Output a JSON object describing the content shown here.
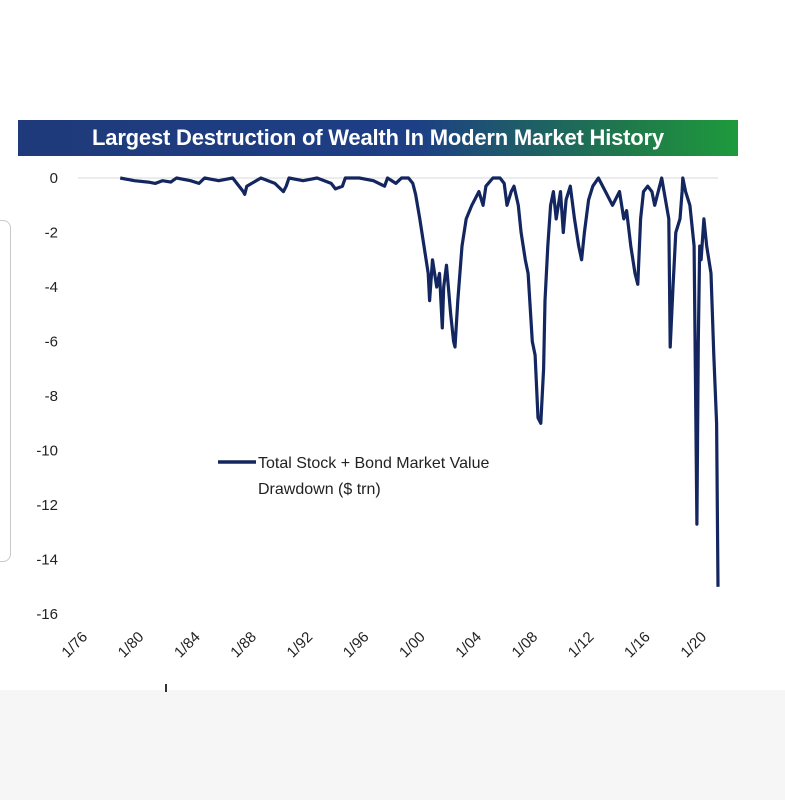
{
  "chart_data": {
    "type": "line",
    "title": "Largest Destruction of Wealth In Modern Market History",
    "xlabel": "",
    "ylabel": "",
    "ylim": [
      -16,
      0
    ],
    "yticks": [
      "0",
      "-2",
      "-4",
      "-6",
      "-8",
      "-10",
      "-12",
      "-14",
      "-16"
    ],
    "xticks": [
      "1/76",
      "1/80",
      "1/84",
      "1/88",
      "1/92",
      "1/96",
      "1/00",
      "1/04",
      "1/08",
      "1/12",
      "1/16",
      "1/20"
    ],
    "xlim": [
      1976,
      2021.5
    ],
    "grid": false,
    "legend_position": "center-left",
    "series": [
      {
        "name": "Total Stock + Bond Market Value Drawdown ($ trn)",
        "legend_line1": "Total Stock + Bond Market Value",
        "legend_line2": "Drawdown ($ trn)",
        "color": "#13265f",
        "x": [
          1979.0,
          1980.0,
          1981.0,
          1981.5,
          1982.0,
          1982.6,
          1983.0,
          1984.0,
          1984.6,
          1985.0,
          1986.0,
          1987.0,
          1987.75,
          1987.85,
          1988.0,
          1989.0,
          1990.0,
          1990.6,
          1990.8,
          1991.0,
          1992.0,
          1993.0,
          1994.0,
          1994.3,
          1994.8,
          1995.0,
          1996.0,
          1997.0,
          1997.8,
          1998.0,
          1998.6,
          1998.8,
          1999.0,
          1999.5,
          1999.8,
          2000.0,
          2000.3,
          2000.6,
          2000.9,
          2001.0,
          2001.2,
          2001.5,
          2001.7,
          2001.9,
          2002.0,
          2002.2,
          2002.5,
          2002.7,
          2002.8,
          2003.0,
          2003.3,
          2003.6,
          2004.0,
          2004.5,
          2004.8,
          2005.0,
          2005.5,
          2006.0,
          2006.3,
          2006.5,
          2006.8,
          2007.0,
          2007.3,
          2007.5,
          2007.8,
          2008.0,
          2008.3,
          2008.5,
          2008.7,
          2008.9,
          2009.0,
          2009.1,
          2009.2,
          2009.4,
          2009.6,
          2009.8,
          2010.0,
          2010.3,
          2010.5,
          2010.7,
          2011.0,
          2011.3,
          2011.6,
          2011.8,
          2012.0,
          2012.3,
          2012.6,
          2013.0,
          2013.5,
          2014.0,
          2014.5,
          2014.8,
          2015.0,
          2015.3,
          2015.6,
          2015.8,
          2016.0,
          2016.2,
          2016.5,
          2016.8,
          2017.0,
          2017.5,
          2018.0,
          2018.1,
          2018.3,
          2018.5,
          2018.8,
          2018.95,
          2019.0,
          2019.2,
          2019.5,
          2019.8,
          2020.0,
          2020.1,
          2020.2,
          2020.3,
          2020.5,
          2020.7,
          2021.0,
          2021.2,
          2021.4,
          2021.5
        ],
        "y": [
          0,
          -0.1,
          -0.15,
          -0.2,
          -0.1,
          -0.15,
          0,
          -0.1,
          -0.2,
          0,
          -0.1,
          0,
          -0.5,
          -0.6,
          -0.3,
          0,
          -0.2,
          -0.5,
          -0.3,
          0,
          -0.1,
          0,
          -0.2,
          -0.4,
          -0.3,
          0,
          0,
          -0.1,
          -0.3,
          0,
          -0.2,
          -0.1,
          0,
          0,
          -0.2,
          -0.6,
          -1.5,
          -2.5,
          -3.5,
          -4.5,
          -3.0,
          -4.0,
          -3.5,
          -5.5,
          -4.0,
          -3.2,
          -5.0,
          -6.0,
          -6.2,
          -4.5,
          -2.5,
          -1.5,
          -1.0,
          -0.5,
          -1.0,
          -0.3,
          0,
          0,
          -0.2,
          -1.0,
          -0.5,
          -0.3,
          -1.0,
          -2.0,
          -3.0,
          -3.5,
          -6.0,
          -6.5,
          -8.8,
          -9.0,
          -8.0,
          -7.0,
          -4.5,
          -2.5,
          -1.0,
          -0.5,
          -1.5,
          -0.5,
          -2.0,
          -0.8,
          -0.3,
          -1.5,
          -2.5,
          -3.0,
          -2.0,
          -0.8,
          -0.3,
          0,
          -0.5,
          -1.0,
          -0.5,
          -1.5,
          -1.2,
          -2.5,
          -3.5,
          -3.9,
          -1.5,
          -0.5,
          -0.3,
          -0.5,
          -1.0,
          0,
          -1.5,
          -6.2,
          -4.0,
          -2.0,
          -1.5,
          -0.5,
          0,
          -0.5,
          -1.0,
          -2.5,
          -12.7,
          -6.0,
          -2.5,
          -3.0,
          -1.5,
          -2.5,
          -3.5,
          -6.5,
          -9.0,
          -15.0
        ]
      }
    ]
  }
}
